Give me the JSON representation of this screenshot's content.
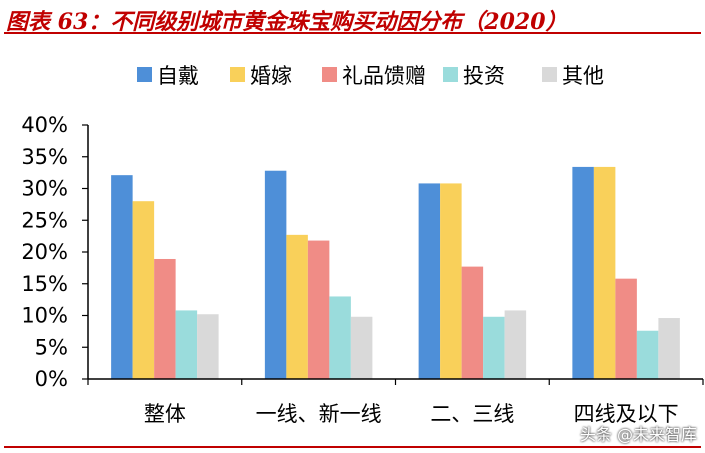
{
  "chart_data": {
    "type": "bar",
    "title": "图表 63：不同级别城市黄金珠宝购买动因分布（2020）",
    "categories": [
      "整体",
      "一线、新一线",
      "二、三线",
      "四线及以下"
    ],
    "series": [
      {
        "name": "自戴",
        "color": "#4e8fd8",
        "values": [
          32.1,
          32.8,
          30.8,
          33.4
        ]
      },
      {
        "name": "婚嫁",
        "color": "#f9d05a",
        "values": [
          28.0,
          22.7,
          30.8,
          33.4
        ]
      },
      {
        "name": "礼品馈赠",
        "color": "#f08c86",
        "values": [
          18.9,
          21.8,
          17.7,
          15.8
        ]
      },
      {
        "name": "投资",
        "color": "#9adcdc",
        "values": [
          10.8,
          13.0,
          9.8,
          7.6
        ]
      },
      {
        "name": "其他",
        "color": "#d9d9d9",
        "values": [
          10.2,
          9.8,
          10.8,
          9.6
        ]
      }
    ],
    "y_ticks": [
      "0%",
      "5%",
      "10%",
      "15%",
      "20%",
      "25%",
      "30%",
      "35%",
      "40%"
    ],
    "ylim": [
      0,
      40
    ],
    "legend_position": "top",
    "grid": false
  },
  "watermark": "头条 @未来智库"
}
